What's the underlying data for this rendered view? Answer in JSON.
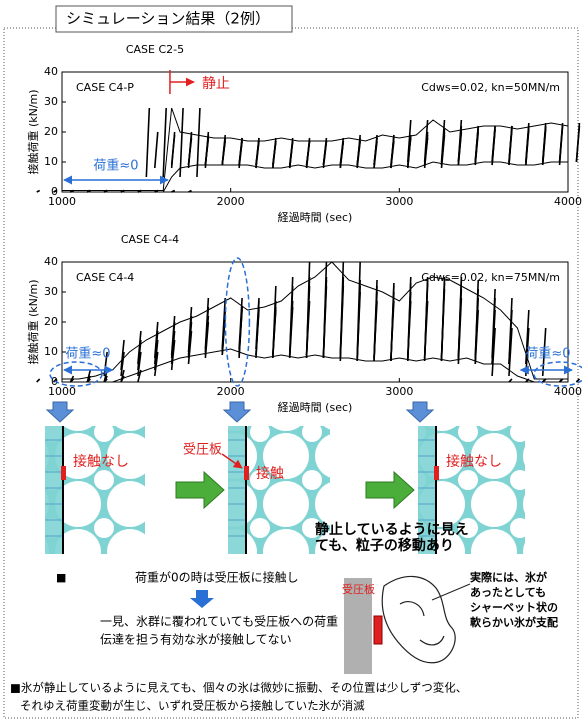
{
  "header": {
    "title": "シミュレーション結果（2例）"
  },
  "chart_data": [
    {
      "type": "line",
      "title": "CASE C2-5",
      "xlabel": "経過時間 (sec)",
      "ylabel": "接触荷重 (kN/m)",
      "annotations": [
        "CASE C4-P",
        "静止",
        "荷重≈0",
        "Cdws=0.02, kn=50MN/m"
      ],
      "xlim": [
        1000,
        4000
      ],
      "xticks": [
        1000,
        2000,
        3000,
        4000
      ],
      "ylim": [
        0,
        40
      ],
      "yticks": [
        0,
        10,
        20,
        30,
        40
      ],
      "color": "#000000",
      "x": [
        1000,
        1100,
        1200,
        1300,
        1400,
        1500,
        1600,
        1650,
        1700,
        1800,
        1900,
        2000,
        2100,
        2200,
        2300,
        2400,
        2500,
        2600,
        2700,
        2800,
        2900,
        3000,
        3100,
        3200,
        3300,
        3400,
        3500,
        3600,
        3700,
        3800,
        3900,
        4000
      ],
      "series": [
        {
          "values": [
            0,
            0,
            0,
            0,
            0,
            0,
            0,
            5,
            8,
            9,
            9,
            9,
            9,
            8,
            8,
            9,
            8,
            9,
            9,
            8,
            8,
            9,
            8,
            10,
            9,
            9,
            10,
            10,
            9,
            9,
            10,
            10
          ]
        },
        {
          "values": [
            0.5,
            0.5,
            0.5,
            0.5,
            0.5,
            0.5,
            0.5,
            28,
            20,
            19,
            18,
            18,
            17,
            17,
            18,
            17,
            17,
            17,
            18,
            17,
            19,
            18,
            19,
            24,
            20,
            21,
            22,
            22,
            21,
            22,
            23,
            22
          ]
        }
      ]
    },
    {
      "type": "line",
      "title": "CASE C4-4",
      "xlabel": "経過時間 (sec)",
      "ylabel": "接触荷重 (kN/m)",
      "annotations": [
        "CASE C4-4",
        "荷重≈0",
        "荷重≈0",
        "Cdws=0.02, kn=75MN/m"
      ],
      "xlim": [
        1000,
        4000
      ],
      "xticks": [
        1000,
        2000,
        3000,
        4000
      ],
      "ylim": [
        0,
        40
      ],
      "yticks": [
        0,
        10,
        20,
        30,
        40
      ],
      "color": "#000000",
      "x": [
        1000,
        1100,
        1200,
        1300,
        1400,
        1500,
        1600,
        1700,
        1800,
        1900,
        2000,
        2100,
        2200,
        2300,
        2400,
        2500,
        2600,
        2700,
        2800,
        2900,
        3000,
        3100,
        3200,
        3300,
        3400,
        3500,
        3600,
        3700,
        3800,
        3900,
        4000
      ],
      "series": [
        {
          "values": [
            0,
            0,
            0,
            0,
            2,
            4,
            6,
            8,
            9,
            10,
            11,
            9,
            8,
            9,
            8,
            9,
            8,
            8,
            7,
            7,
            8,
            7,
            8,
            7,
            8,
            6,
            6,
            2,
            0,
            0,
            0
          ]
        },
        {
          "values": [
            1,
            1,
            2,
            4,
            10,
            14,
            17,
            20,
            22,
            25,
            28,
            24,
            25,
            27,
            32,
            35,
            40,
            34,
            32,
            30,
            27,
            33,
            35,
            34,
            31,
            28,
            24,
            18,
            1,
            1,
            1
          ]
        }
      ]
    }
  ],
  "panels": [
    {
      "labels": [
        "接触なし"
      ]
    },
    {
      "labels": [
        "受圧板",
        "接触"
      ]
    },
    {
      "labels": [
        "接触なし"
      ]
    }
  ],
  "panel_note": [
    "静止しているように見え",
    "ても、粒子の移動あり"
  ],
  "notes": {
    "bullet": "■",
    "line1": "荷重が0の時は受圧板に接触し",
    "line2": [
      "一見、氷群に覆われていても受圧板への荷重",
      "伝達を担う有効な氷が接触してない"
    ],
    "figure_label": "受圧板",
    "callout": [
      "実際には、氷が",
      "あったとしても",
      "シャーベット状の",
      "軟らかい氷が支配"
    ],
    "summary": [
      "■氷が静止しているように見えても、個々の氷は微妙に振動、その位置は少しずつ変化、",
      "それゆえ荷重変動が生じ、いずれ受圧板から接触していた氷が消滅"
    ]
  }
}
